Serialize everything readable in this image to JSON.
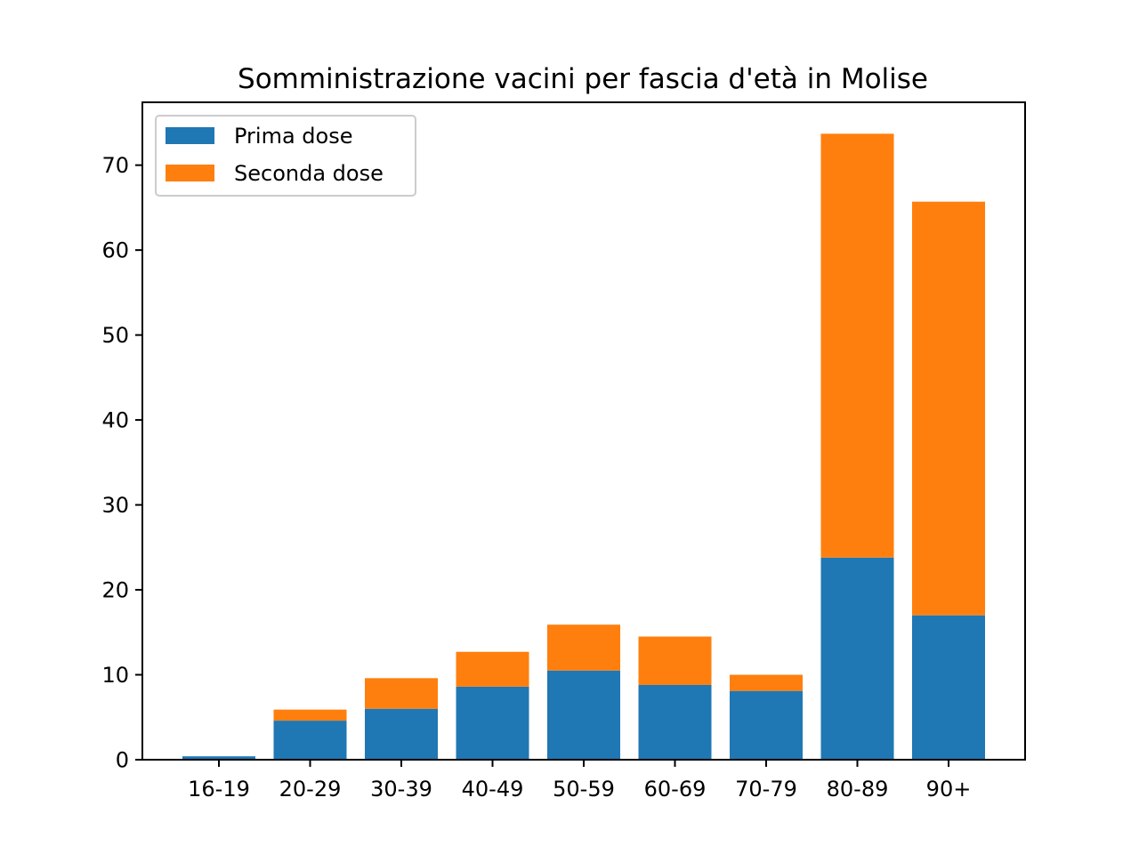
{
  "chart_data": {
    "type": "bar",
    "stacked": true,
    "title": "Somministrazione vacini per fascia d'età in Molise",
    "xlabel": "",
    "ylabel": "",
    "ylim": [
      0,
      77.4
    ],
    "yticks": [
      0,
      10,
      20,
      30,
      40,
      50,
      60,
      70
    ],
    "categories": [
      "16-19",
      "20-29",
      "30-39",
      "40-49",
      "50-59",
      "60-69",
      "70-79",
      "80-89",
      "90+"
    ],
    "series": [
      {
        "name": "Prima dose",
        "color": "#1f77b4",
        "values": [
          0.4,
          4.6,
          6.0,
          8.6,
          10.5,
          8.8,
          8.1,
          23.8,
          17.0
        ]
      },
      {
        "name": "Seconda dose",
        "color": "#ff7f0e",
        "values": [
          0.0,
          1.3,
          3.6,
          4.1,
          5.4,
          5.7,
          1.9,
          49.9,
          48.7
        ]
      }
    ],
    "grid": false,
    "legend_position": "upper-left"
  }
}
